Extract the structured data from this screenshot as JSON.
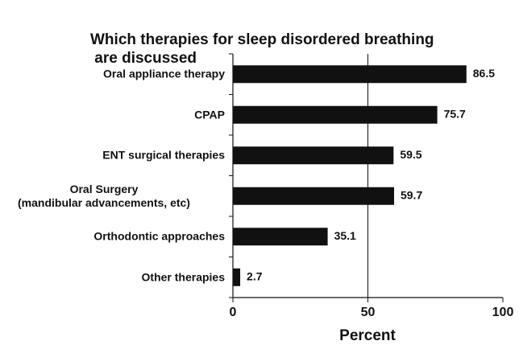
{
  "chart_data": {
    "type": "bar",
    "orientation": "horizontal",
    "title": [
      "Which therapies for sleep disordered breathing",
      " are discussed"
    ],
    "categories": [
      "Oral appliance therapy",
      "CPAP",
      "ENT surgical therapies",
      "Oral Surgery\n(mandibular advancements, etc)",
      "Orthodontic approaches",
      "Other therapies"
    ],
    "values": [
      86.5,
      75.7,
      59.5,
      59.7,
      35.1,
      2.7
    ],
    "color": "#111111",
    "xlim": [
      0,
      100
    ],
    "xticks": [
      0,
      50,
      100
    ],
    "xlabel": "Percent",
    "grid": true
  }
}
